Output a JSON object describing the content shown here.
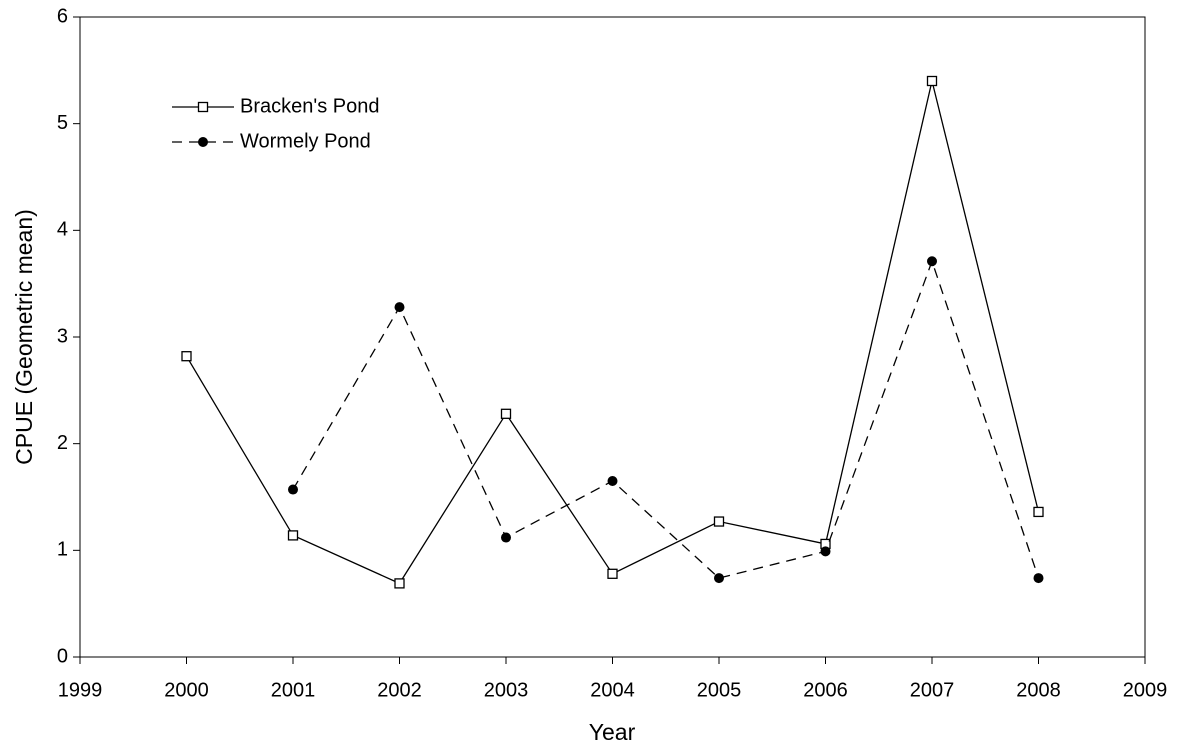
{
  "chart_data": {
    "type": "line",
    "x_label": "Year",
    "y_label": "CPUE (Geometric mean)",
    "x": [
      2000,
      2001,
      2002,
      2003,
      2004,
      2005,
      2006,
      2007,
      2008
    ],
    "series": [
      {
        "name": "Bracken's Pond",
        "color": "#000000",
        "line_style": "solid",
        "marker": "square",
        "values": [
          2.82,
          1.14,
          0.69,
          2.28,
          0.78,
          1.27,
          1.06,
          5.4,
          1.36
        ]
      },
      {
        "name": "Wormely Pond",
        "color": "#000000",
        "line_style": "dashed",
        "marker": "circle",
        "values": [
          null,
          1.57,
          3.28,
          1.12,
          1.65,
          0.74,
          0.99,
          3.71,
          0.74
        ]
      }
    ],
    "xlim": [
      1999,
      2009
    ],
    "xticks": [
      1999,
      2000,
      2001,
      2002,
      2003,
      2004,
      2005,
      2006,
      2007,
      2008,
      2009
    ],
    "ylim": [
      0,
      6
    ],
    "yticks": [
      0,
      1,
      2,
      3,
      4,
      5,
      6
    ],
    "grid": false,
    "legend": "top-left"
  }
}
